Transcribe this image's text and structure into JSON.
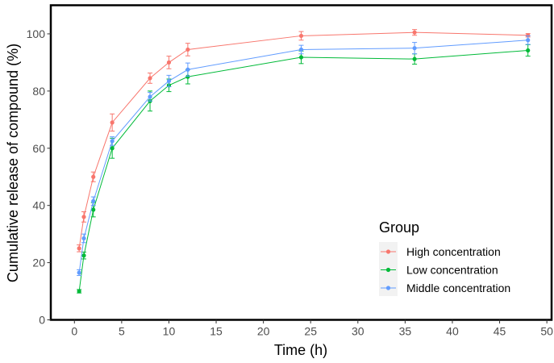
{
  "chart_data": {
    "type": "line",
    "title": "",
    "xlabel": "Time (h)",
    "ylabel": "Cumulative release of compound (%)",
    "xlim": [
      -2.5,
      50.5
    ],
    "ylim": [
      0,
      110
    ],
    "xticks": [
      0,
      5,
      10,
      15,
      20,
      25,
      30,
      35,
      40,
      45,
      50
    ],
    "yticks": [
      0,
      20,
      40,
      60,
      80,
      100
    ],
    "grid": false,
    "legend": {
      "title": "Group",
      "position": "bottom-right"
    },
    "x": [
      0.5,
      1,
      2,
      4,
      8,
      10,
      12,
      24,
      36,
      48
    ],
    "series": [
      {
        "name": "High concentration",
        "color": "#F8766D",
        "values": [
          25,
          36,
          50,
          69,
          84.5,
          90,
          94.5,
          99.3,
          100.5,
          99.5
        ],
        "errors": [
          1.2,
          1.8,
          1.7,
          3.0,
          1.8,
          2.2,
          2.2,
          1.5,
          1.0,
          0.6
        ]
      },
      {
        "name": "Low concentration",
        "color": "#00BA38",
        "values": [
          10,
          22.5,
          38.5,
          60,
          76.5,
          82,
          85,
          91.8,
          91.2,
          94.2
        ],
        "errors": [
          0.6,
          1.2,
          2.5,
          3.5,
          3.5,
          2.2,
          2.5,
          2.2,
          1.8,
          2.0
        ]
      },
      {
        "name": "Middle concentration",
        "color": "#619CFF",
        "values": [
          16.5,
          28.5,
          41.5,
          62.5,
          78,
          83.5,
          87.5,
          94.5,
          95,
          97.8
        ],
        "errors": [
          1.0,
          1.5,
          1.5,
          1.5,
          1.5,
          2.0,
          2.3,
          1.5,
          2.0,
          1.5
        ]
      }
    ]
  }
}
